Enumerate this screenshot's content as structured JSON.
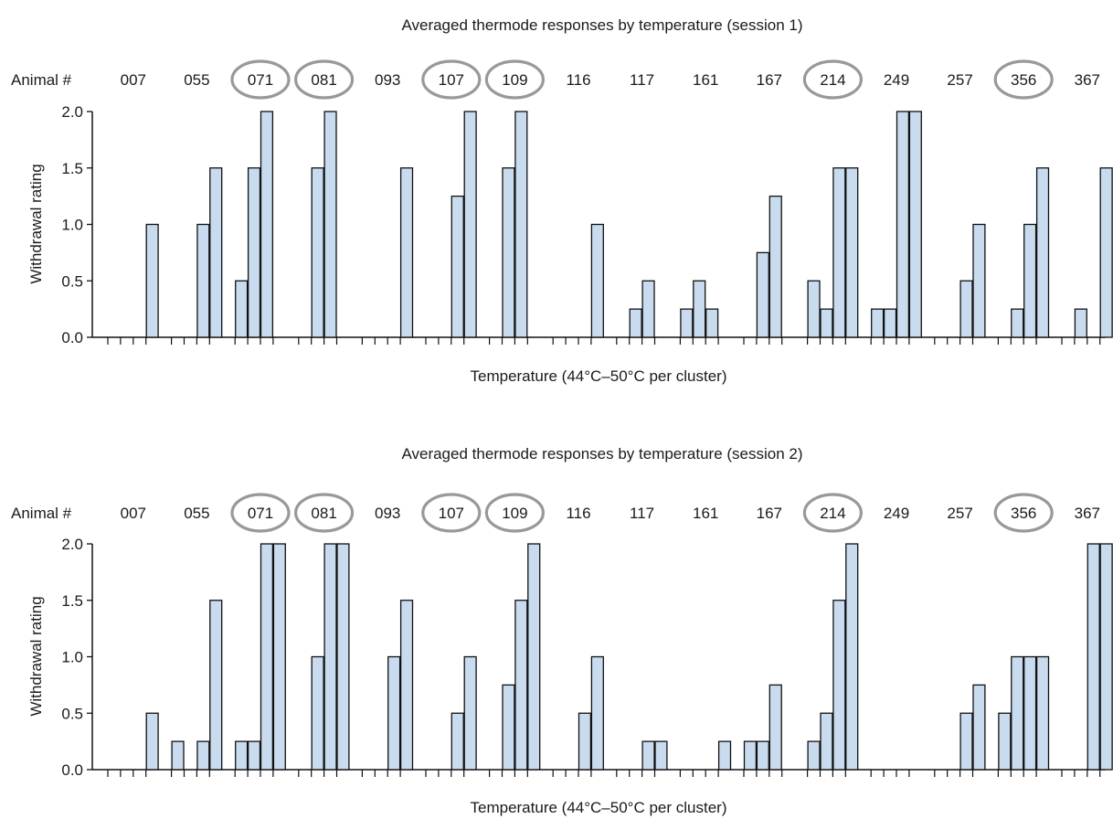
{
  "panel_label": "Animal #",
  "colors": {
    "bar_fill": "#c9dbee",
    "bar_stroke": "#111111",
    "circle": "#999999",
    "axis": "#111111"
  },
  "chart_data": [
    {
      "type": "bar",
      "title": "Averaged thermode responses by temperature (session 1)",
      "xlabel": "Temperature (44°C–50°C per cluster)",
      "ylabel": "Withdrawal rating",
      "ylim": [
        0,
        2
      ],
      "yticks": [
        "0.0",
        "0.5",
        "1.0",
        "1.5",
        "2.0"
      ],
      "grid": false,
      "categories": [
        "007",
        "055",
        "071",
        "081",
        "093",
        "107",
        "109",
        "116",
        "117",
        "161",
        "167",
        "214",
        "249",
        "257",
        "356",
        "367"
      ],
      "circled": [
        "071",
        "081",
        "107",
        "109",
        "214",
        "356"
      ],
      "bars_per_cluster": 4,
      "values": [
        [
          0,
          0,
          0,
          1.0
        ],
        [
          0,
          0,
          1.0,
          1.5
        ],
        [
          0.5,
          1.5,
          2.0,
          0
        ],
        [
          0,
          1.5,
          2.0,
          0
        ],
        [
          0,
          0,
          0,
          1.5
        ],
        [
          0,
          0,
          1.25,
          2.0
        ],
        [
          0,
          1.5,
          2.0,
          0
        ],
        [
          0,
          0,
          0,
          1.0
        ],
        [
          0,
          0.25,
          0.5,
          0
        ],
        [
          0.25,
          0.5,
          0.25,
          0
        ],
        [
          0,
          0.75,
          1.25,
          0
        ],
        [
          0.5,
          0.25,
          1.5,
          1.5
        ],
        [
          0.25,
          0.25,
          2.0,
          2.0
        ],
        [
          0,
          0,
          0.5,
          1.0
        ],
        [
          0,
          0.25,
          1.0,
          1.5
        ],
        [
          0,
          0.25,
          0,
          1.5
        ]
      ]
    },
    {
      "type": "bar",
      "title": "Averaged thermode responses by temperature (session 2)",
      "xlabel": "Temperature (44°C–50°C per cluster)",
      "ylabel": "Withdrawal rating",
      "ylim": [
        0,
        2
      ],
      "yticks": [
        "0.0",
        "0.5",
        "1.0",
        "1.5",
        "2.0"
      ],
      "grid": false,
      "categories": [
        "007",
        "055",
        "071",
        "081",
        "093",
        "107",
        "109",
        "116",
        "117",
        "161",
        "167",
        "214",
        "249",
        "257",
        "356",
        "367"
      ],
      "circled": [
        "071",
        "081",
        "107",
        "109",
        "214",
        "356"
      ],
      "bars_per_cluster": 4,
      "values": [
        [
          0,
          0,
          0,
          0.5
        ],
        [
          0.25,
          0,
          0.25,
          1.5
        ],
        [
          0.25,
          0.25,
          2.0,
          2.0
        ],
        [
          0,
          1.0,
          2.0,
          2.0
        ],
        [
          0,
          0,
          1.0,
          1.5
        ],
        [
          0,
          0,
          0.5,
          1.0
        ],
        [
          0,
          0.75,
          1.5,
          2.0
        ],
        [
          0,
          0,
          0.5,
          1.0
        ],
        [
          0,
          0,
          0.25,
          0.25
        ],
        [
          0,
          0,
          0,
          0.25
        ],
        [
          0.25,
          0.25,
          0.75,
          0
        ],
        [
          0.25,
          0.5,
          1.5,
          2.0
        ],
        [
          0,
          0,
          0,
          0
        ],
        [
          0,
          0,
          0.5,
          0.75
        ],
        [
          0.5,
          1.0,
          1.0,
          1.0
        ],
        [
          0,
          0,
          2.0,
          2.0
        ]
      ]
    }
  ]
}
